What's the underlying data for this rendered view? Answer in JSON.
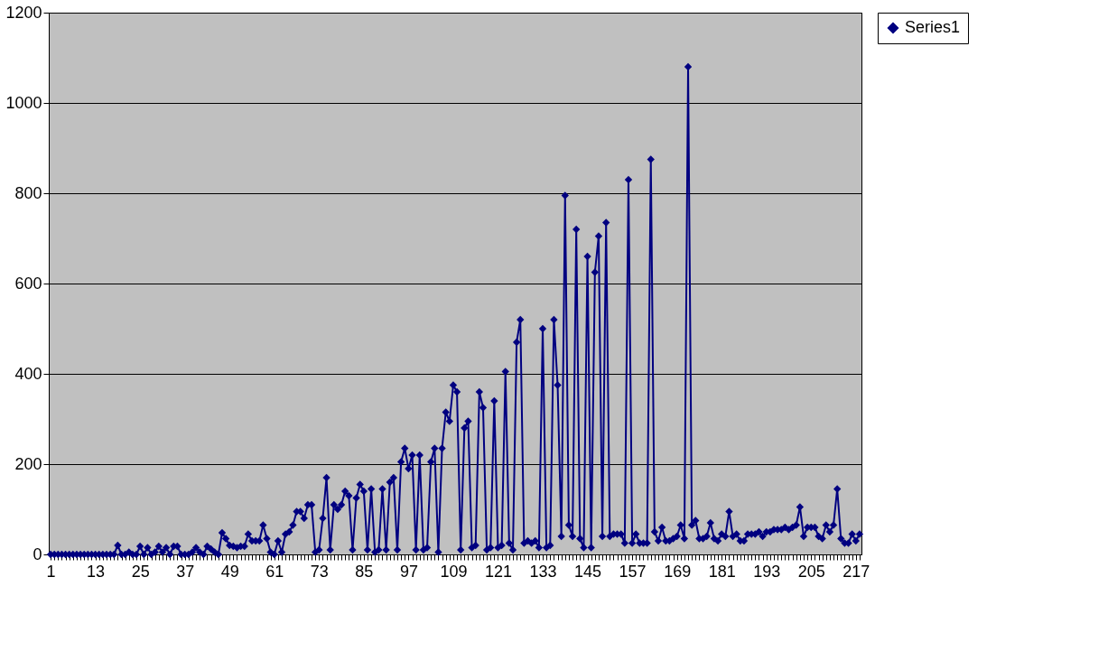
{
  "chart_data": {
    "type": "line",
    "categories": [
      "1",
      null,
      null,
      null,
      null,
      null,
      null,
      null,
      null,
      null,
      null,
      null,
      "13",
      null,
      null,
      null,
      null,
      null,
      null,
      null,
      null,
      null,
      null,
      null,
      "25",
      null,
      null,
      null,
      null,
      null,
      null,
      null,
      null,
      null,
      null,
      null,
      "37",
      null,
      null,
      null,
      null,
      null,
      null,
      null,
      null,
      null,
      null,
      null,
      "49",
      null,
      null,
      null,
      null,
      null,
      null,
      null,
      null,
      null,
      null,
      null,
      "61",
      null,
      null,
      null,
      null,
      null,
      null,
      null,
      null,
      null,
      null,
      null,
      "73",
      null,
      null,
      null,
      null,
      null,
      null,
      null,
      null,
      null,
      null,
      null,
      "85",
      null,
      null,
      null,
      null,
      null,
      null,
      null,
      null,
      null,
      null,
      null,
      "97",
      null,
      null,
      null,
      null,
      null,
      null,
      null,
      null,
      null,
      null,
      null,
      "109",
      null,
      null,
      null,
      null,
      null,
      null,
      null,
      null,
      null,
      null,
      null,
      "121",
      null,
      null,
      null,
      null,
      null,
      null,
      null,
      null,
      null,
      null,
      null,
      "133",
      null,
      null,
      null,
      null,
      null,
      null,
      null,
      null,
      null,
      null,
      null,
      "145",
      null,
      null,
      null,
      null,
      null,
      null,
      null,
      null,
      null,
      null,
      null,
      "157",
      null,
      null,
      null,
      null,
      null,
      null,
      null,
      null,
      null,
      null,
      null,
      "169",
      null,
      null,
      null,
      null,
      null,
      null,
      null,
      null,
      null,
      null,
      null,
      "181",
      null,
      null,
      null,
      null,
      null,
      null,
      null,
      null,
      null,
      null,
      null,
      "193",
      null,
      null,
      null,
      null,
      null,
      null,
      null,
      null,
      null,
      null,
      null,
      "205",
      null,
      null,
      null,
      null,
      null,
      null,
      null,
      null,
      null,
      null,
      null,
      "217",
      null
    ],
    "series": [
      {
        "name": "Series1",
        "color": "#000080",
        "values": [
          0,
          0,
          0,
          0,
          0,
          0,
          0,
          0,
          0,
          0,
          0,
          0,
          0,
          0,
          0,
          0,
          0,
          0,
          20,
          0,
          0,
          5,
          0,
          0,
          18,
          0,
          15,
          0,
          5,
          18,
          5,
          15,
          0,
          18,
          18,
          0,
          0,
          0,
          5,
          15,
          5,
          0,
          18,
          12,
          5,
          0,
          48,
          35,
          20,
          18,
          15,
          18,
          18,
          45,
          30,
          30,
          30,
          65,
          35,
          5,
          0,
          30,
          5,
          45,
          50,
          65,
          95,
          95,
          80,
          110,
          110,
          5,
          10,
          80,
          170,
          10,
          110,
          100,
          110,
          140,
          130,
          10,
          125,
          155,
          140,
          10,
          145,
          5,
          10,
          145,
          10,
          160,
          170,
          10,
          205,
          235,
          190,
          220,
          10,
          220,
          10,
          15,
          205,
          235,
          5,
          235,
          315,
          295,
          375,
          360,
          10,
          280,
          295,
          15,
          20,
          360,
          325,
          10,
          15,
          340,
          15,
          20,
          405,
          25,
          10,
          470,
          520,
          25,
          30,
          25,
          30,
          15,
          500,
          15,
          20,
          520,
          375,
          40,
          795,
          65,
          40,
          720,
          35,
          15,
          660,
          15,
          625,
          705,
          40,
          735,
          40,
          45,
          45,
          45,
          25,
          830,
          25,
          45,
          25,
          25,
          25,
          875,
          50,
          30,
          60,
          30,
          30,
          35,
          40,
          65,
          35,
          1080,
          65,
          75,
          35,
          35,
          40,
          70,
          35,
          30,
          45,
          40,
          95,
          40,
          45,
          30,
          30,
          45,
          45,
          45,
          50,
          40,
          50,
          50,
          55,
          55,
          55,
          60,
          55,
          60,
          65,
          105,
          40,
          60,
          60,
          60,
          40,
          35,
          65,
          50,
          65,
          145,
          35,
          25,
          25,
          45,
          30,
          45
        ]
      }
    ],
    "ylim": [
      0,
      1200
    ],
    "yticks": [
      0,
      200,
      400,
      600,
      800,
      1000,
      1200
    ],
    "grid": "y",
    "legend": "right",
    "marker": "diamond",
    "line_style": "solid"
  }
}
